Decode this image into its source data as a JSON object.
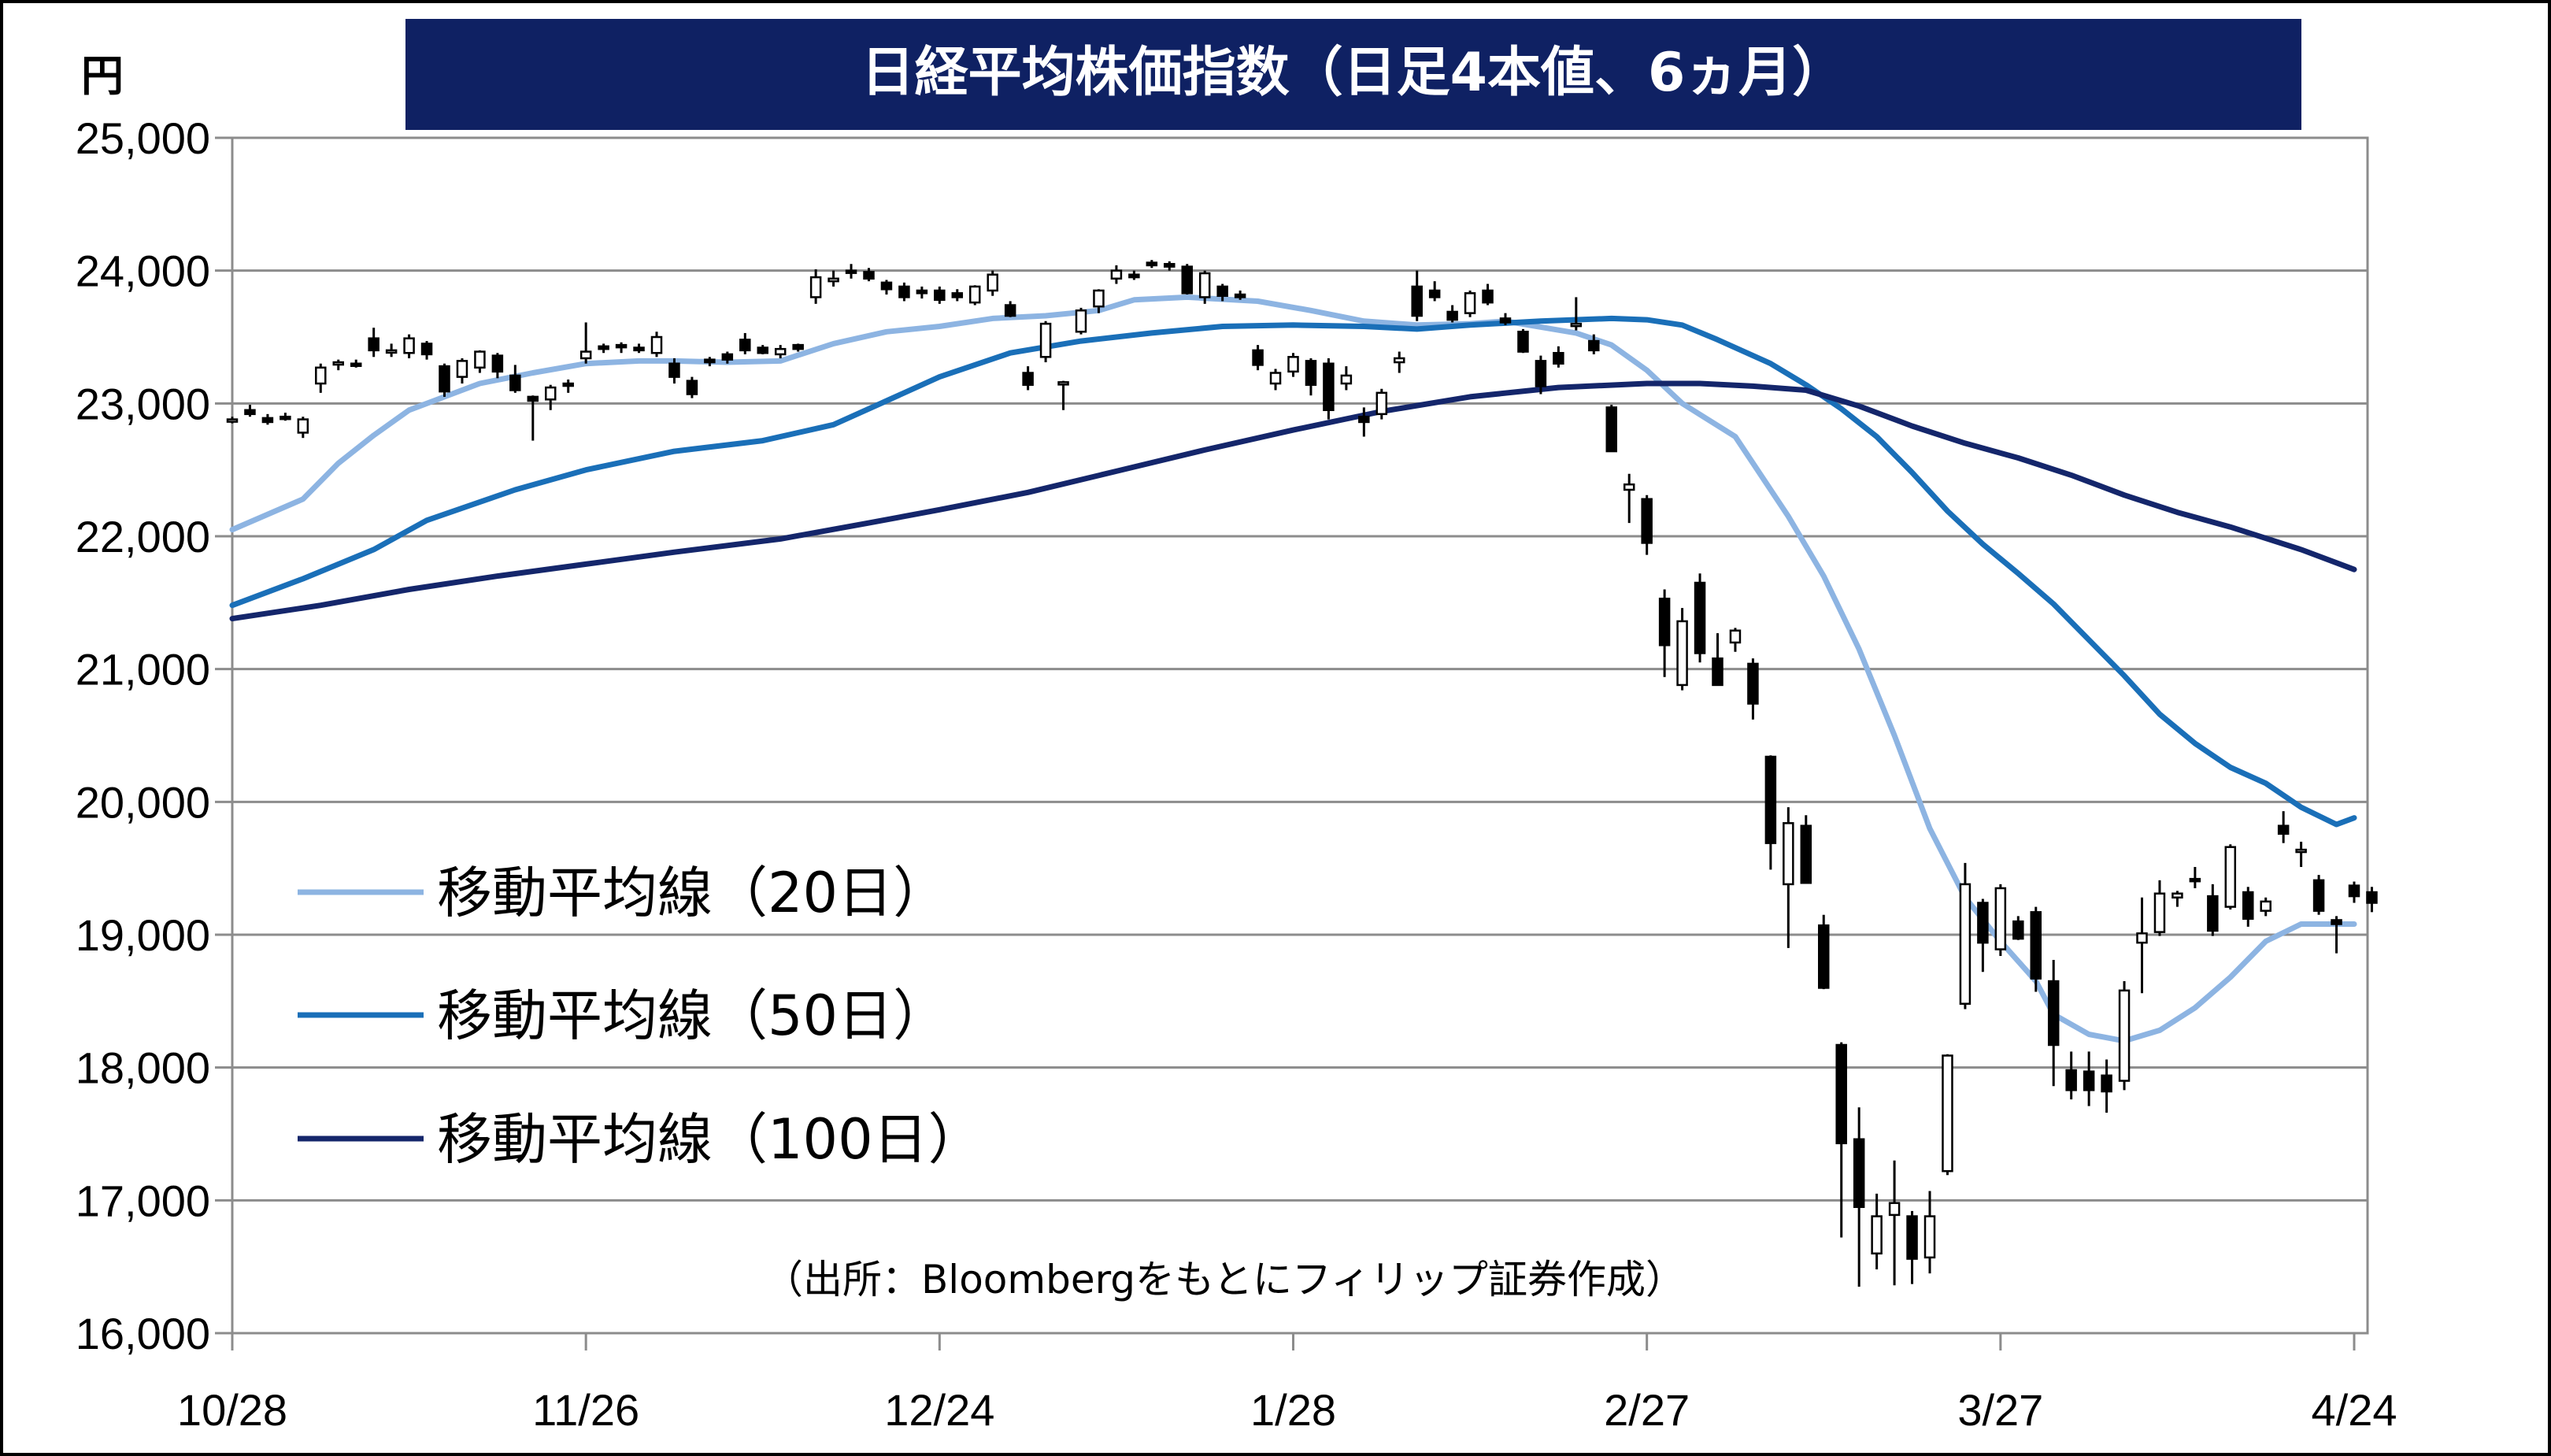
{
  "chart_data": {
    "type": "candlestick",
    "title": "日経平均株価指数（日足4本値、6ヵ月）",
    "unit": "円",
    "source": "（出所：Bloombergをもとにフィリップ証券作成）",
    "ylim": [
      16000,
      25000
    ],
    "y_ticks": [
      {
        "value": 16000,
        "label": "16,000"
      },
      {
        "value": 17000,
        "label": "17,000"
      },
      {
        "value": 18000,
        "label": "18,000"
      },
      {
        "value": 19000,
        "label": "19,000"
      },
      {
        "value": 20000,
        "label": "20,000"
      },
      {
        "value": 21000,
        "label": "21,000"
      },
      {
        "value": 22000,
        "label": "22,000"
      },
      {
        "value": 23000,
        "label": "23,000"
      },
      {
        "value": 24000,
        "label": "24,000"
      },
      {
        "value": 25000,
        "label": "25,000"
      }
    ],
    "x_ticks": [
      {
        "index": 0,
        "label": "10/28"
      },
      {
        "index": 20,
        "label": "11/26"
      },
      {
        "index": 40,
        "label": "12/24"
      },
      {
        "index": 60,
        "label": "1/28"
      },
      {
        "index": 80,
        "label": "2/27"
      },
      {
        "index": 100,
        "label": "3/27"
      },
      {
        "index": 120,
        "label": "4/24"
      }
    ],
    "grid": true,
    "legend_position": "left",
    "colors": {
      "ma20": "#8db4e2",
      "ma50": "#1a6fb8",
      "ma100": "#14266b",
      "title_bg": "#0f2163",
      "grid": "#8c8c8c",
      "candle_up_fill": "#ffffff",
      "candle_down_fill": "#000000"
    },
    "series": [
      {
        "name": "移動平均線（20日）",
        "key": "ma20",
        "points": [
          [
            0,
            22050
          ],
          [
            4,
            22280
          ],
          [
            6,
            22550
          ],
          [
            8,
            22760
          ],
          [
            10,
            22950
          ],
          [
            12,
            23050
          ],
          [
            14,
            23150
          ],
          [
            17,
            23230
          ],
          [
            20,
            23300
          ],
          [
            23,
            23320
          ],
          [
            25,
            23320
          ],
          [
            28,
            23310
          ],
          [
            31,
            23320
          ],
          [
            34,
            23450
          ],
          [
            37,
            23540
          ],
          [
            40,
            23580
          ],
          [
            43,
            23640
          ],
          [
            46,
            23660
          ],
          [
            49,
            23700
          ],
          [
            51,
            23780
          ],
          [
            54,
            23800
          ],
          [
            58,
            23770
          ],
          [
            61,
            23700
          ],
          [
            64,
            23620
          ],
          [
            67,
            23590
          ],
          [
            70,
            23600
          ],
          [
            72,
            23620
          ],
          [
            76,
            23530
          ],
          [
            78,
            23440
          ],
          [
            80,
            23250
          ],
          [
            82,
            23000
          ],
          [
            85,
            22750
          ],
          [
            88,
            22150
          ],
          [
            90,
            21700
          ],
          [
            92,
            21150
          ],
          [
            94,
            20500
          ],
          [
            96,
            19800
          ],
          [
            98,
            19280
          ],
          [
            100,
            18950
          ],
          [
            102,
            18650
          ],
          [
            103,
            18400
          ],
          [
            105,
            18250
          ],
          [
            107,
            18200
          ],
          [
            109,
            18280
          ],
          [
            111,
            18450
          ],
          [
            113,
            18680
          ],
          [
            115,
            18950
          ],
          [
            117,
            19080
          ],
          [
            119,
            19080
          ],
          [
            120,
            19080
          ]
        ]
      },
      {
        "name": "移動平均線（50日）",
        "key": "ma50",
        "points": [
          [
            0,
            21480
          ],
          [
            4,
            21680
          ],
          [
            8,
            21900
          ],
          [
            11,
            22120
          ],
          [
            16,
            22350
          ],
          [
            20,
            22500
          ],
          [
            25,
            22640
          ],
          [
            30,
            22720
          ],
          [
            34,
            22840
          ],
          [
            37,
            23020
          ],
          [
            40,
            23200
          ],
          [
            44,
            23380
          ],
          [
            48,
            23470
          ],
          [
            52,
            23530
          ],
          [
            56,
            23580
          ],
          [
            60,
            23590
          ],
          [
            64,
            23580
          ],
          [
            67,
            23560
          ],
          [
            70,
            23590
          ],
          [
            74,
            23620
          ],
          [
            78,
            23640
          ],
          [
            80,
            23630
          ],
          [
            82,
            23590
          ],
          [
            84,
            23480
          ],
          [
            87,
            23300
          ],
          [
            89,
            23140
          ],
          [
            91,
            22960
          ],
          [
            93,
            22750
          ],
          [
            95,
            22480
          ],
          [
            97,
            22190
          ],
          [
            99,
            21940
          ],
          [
            101,
            21720
          ],
          [
            103,
            21490
          ],
          [
            105,
            21220
          ],
          [
            107,
            20950
          ],
          [
            109,
            20660
          ],
          [
            111,
            20440
          ],
          [
            113,
            20260
          ],
          [
            115,
            20140
          ],
          [
            117,
            19960
          ],
          [
            119,
            19830
          ],
          [
            120,
            19880
          ]
        ]
      },
      {
        "name": "移動平均線（100日）",
        "key": "ma100",
        "points": [
          [
            0,
            21380
          ],
          [
            5,
            21480
          ],
          [
            10,
            21600
          ],
          [
            15,
            21700
          ],
          [
            20,
            21790
          ],
          [
            25,
            21880
          ],
          [
            31,
            21980
          ],
          [
            36,
            22100
          ],
          [
            40,
            22200
          ],
          [
            45,
            22330
          ],
          [
            50,
            22490
          ],
          [
            55,
            22650
          ],
          [
            60,
            22800
          ],
          [
            65,
            22940
          ],
          [
            70,
            23050
          ],
          [
            75,
            23120
          ],
          [
            80,
            23150
          ],
          [
            83,
            23150
          ],
          [
            86,
            23130
          ],
          [
            89,
            23100
          ],
          [
            92,
            22980
          ],
          [
            95,
            22830
          ],
          [
            98,
            22700
          ],
          [
            101,
            22590
          ],
          [
            104,
            22460
          ],
          [
            107,
            22310
          ],
          [
            110,
            22180
          ],
          [
            113,
            22070
          ],
          [
            117,
            21900
          ],
          [
            120,
            21750
          ]
        ]
      }
    ],
    "candles": [
      [
        0,
        22880,
        22900,
        22850,
        22880
      ],
      [
        1,
        22950,
        22990,
        22900,
        22920
      ],
      [
        2,
        22890,
        22920,
        22840,
        22860
      ],
      [
        3,
        22900,
        22930,
        22870,
        22890
      ],
      [
        4,
        22780,
        22900,
        22740,
        22880
      ],
      [
        5,
        23150,
        23300,
        23080,
        23270
      ],
      [
        6,
        23300,
        23330,
        23250,
        23310
      ],
      [
        7,
        23300,
        23330,
        23270,
        23290
      ],
      [
        8,
        23490,
        23570,
        23350,
        23400
      ],
      [
        9,
        23400,
        23450,
        23350,
        23400
      ],
      [
        10,
        23380,
        23520,
        23340,
        23490
      ],
      [
        11,
        23450,
        23470,
        23330,
        23370
      ],
      [
        12,
        23280,
        23300,
        23050,
        23090
      ],
      [
        13,
        23200,
        23340,
        23150,
        23320
      ],
      [
        14,
        23270,
        23400,
        23230,
        23390
      ],
      [
        15,
        23360,
        23380,
        23190,
        23240
      ],
      [
        16,
        23210,
        23290,
        23080,
        23100
      ],
      [
        17,
        23050,
        23060,
        22720,
        23020
      ],
      [
        18,
        23030,
        23140,
        22950,
        23120
      ],
      [
        19,
        23150,
        23180,
        23080,
        23140
      ],
      [
        20,
        23340,
        23610,
        23300,
        23390
      ],
      [
        21,
        23430,
        23450,
        23380,
        23410
      ],
      [
        22,
        23440,
        23460,
        23380,
        23430
      ],
      [
        23,
        23420,
        23450,
        23380,
        23400
      ],
      [
        24,
        23380,
        23540,
        23350,
        23500
      ],
      [
        25,
        23300,
        23340,
        23150,
        23200
      ],
      [
        26,
        23170,
        23200,
        23040,
        23070
      ],
      [
        27,
        23330,
        23350,
        23280,
        23310
      ],
      [
        28,
        23370,
        23390,
        23300,
        23330
      ],
      [
        29,
        23480,
        23530,
        23370,
        23400
      ],
      [
        30,
        23420,
        23440,
        23370,
        23380
      ],
      [
        31,
        23370,
        23440,
        23340,
        23410
      ],
      [
        32,
        23440,
        23450,
        23390,
        23410
      ],
      [
        33,
        23800,
        24010,
        23750,
        23950
      ],
      [
        34,
        23920,
        24000,
        23880,
        23940
      ],
      [
        35,
        24000,
        24050,
        23940,
        23990
      ],
      [
        36,
        23990,
        24020,
        23920,
        23940
      ],
      [
        37,
        23910,
        23930,
        23820,
        23860
      ],
      [
        38,
        23880,
        23910,
        23770,
        23800
      ],
      [
        39,
        23850,
        23880,
        23790,
        23830
      ],
      [
        40,
        23850,
        23880,
        23750,
        23780
      ],
      [
        41,
        23830,
        23860,
        23770,
        23800
      ],
      [
        42,
        23760,
        23890,
        23740,
        23880
      ],
      [
        43,
        23850,
        24000,
        23810,
        23970
      ],
      [
        44,
        23740,
        23770,
        23650,
        23660
      ],
      [
        45,
        23230,
        23280,
        23100,
        23140
      ],
      [
        46,
        23350,
        23620,
        23310,
        23600
      ],
      [
        47,
        23150,
        23170,
        22950,
        23160
      ],
      [
        48,
        23540,
        23720,
        23520,
        23700
      ],
      [
        49,
        23730,
        23860,
        23680,
        23850
      ],
      [
        50,
        23940,
        24040,
        23900,
        24000
      ],
      [
        51,
        23970,
        24000,
        23930,
        23950
      ],
      [
        52,
        24060,
        24080,
        24020,
        24040
      ],
      [
        53,
        24050,
        24070,
        24000,
        24030
      ],
      [
        54,
        24030,
        24050,
        23820,
        23830
      ],
      [
        55,
        23800,
        24000,
        23750,
        23980
      ],
      [
        56,
        23880,
        23900,
        23770,
        23810
      ],
      [
        57,
        23820,
        23850,
        23780,
        23800
      ],
      [
        58,
        23400,
        23440,
        23250,
        23290
      ],
      [
        59,
        23150,
        23260,
        23100,
        23230
      ],
      [
        60,
        23240,
        23380,
        23200,
        23350
      ],
      [
        61,
        23320,
        23340,
        23060,
        23140
      ],
      [
        62,
        23300,
        23340,
        22880,
        22950
      ],
      [
        63,
        23150,
        23280,
        23100,
        23210
      ],
      [
        64,
        22900,
        22970,
        22750,
        22860
      ],
      [
        65,
        22920,
        23110,
        22880,
        23080
      ],
      [
        66,
        23310,
        23390,
        23230,
        23340
      ],
      [
        67,
        23880,
        24000,
        23620,
        23660
      ],
      [
        68,
        23850,
        23920,
        23770,
        23800
      ],
      [
        69,
        23690,
        23740,
        23610,
        23630
      ],
      [
        70,
        23680,
        23850,
        23650,
        23830
      ],
      [
        71,
        23850,
        23900,
        23740,
        23760
      ],
      [
        72,
        23640,
        23680,
        23590,
        23610
      ],
      [
        73,
        23540,
        23560,
        23380,
        23390
      ],
      [
        74,
        23320,
        23360,
        23070,
        23130
      ],
      [
        75,
        23380,
        23430,
        23270,
        23300
      ],
      [
        76,
        23590,
        23800,
        23550,
        23600
      ],
      [
        77,
        23470,
        23520,
        23370,
        23400
      ],
      [
        78,
        22970,
        22990,
        22640,
        22640
      ],
      [
        79,
        22350,
        22470,
        22100,
        22390
      ],
      [
        80,
        22280,
        22310,
        21860,
        21950
      ],
      [
        81,
        21530,
        21600,
        20940,
        21180
      ],
      [
        82,
        20880,
        21460,
        20840,
        21360
      ],
      [
        83,
        21650,
        21720,
        21050,
        21120
      ],
      [
        84,
        21080,
        21270,
        20880,
        20880
      ],
      [
        85,
        21200,
        21310,
        21130,
        21290
      ],
      [
        86,
        21040,
        21080,
        20620,
        20740
      ],
      [
        87,
        20340,
        20350,
        19490,
        19690
      ],
      [
        88,
        19380,
        19960,
        18900,
        19840
      ],
      [
        89,
        19820,
        19900,
        19390,
        19390
      ],
      [
        90,
        19070,
        19150,
        18590,
        18600
      ],
      [
        91,
        18170,
        18190,
        16720,
        17430
      ],
      [
        92,
        17460,
        17700,
        16350,
        16950
      ],
      [
        93,
        16600,
        17050,
        16480,
        16880
      ],
      [
        94,
        16890,
        17300,
        16360,
        16980
      ],
      [
        95,
        16880,
        16920,
        16370,
        16560
      ],
      [
        96,
        16570,
        17070,
        16450,
        16880
      ],
      [
        97,
        17220,
        18100,
        17190,
        18090
      ],
      [
        98,
        18480,
        19540,
        18440,
        19380
      ],
      [
        99,
        19240,
        19270,
        18720,
        18940
      ],
      [
        100,
        18890,
        19380,
        18840,
        19350
      ],
      [
        101,
        19100,
        19140,
        18960,
        18970
      ],
      [
        102,
        19170,
        19210,
        18570,
        18670
      ],
      [
        103,
        18650,
        18810,
        17860,
        18170
      ],
      [
        104,
        17980,
        18120,
        17760,
        17830
      ],
      [
        105,
        17970,
        18120,
        17710,
        17830
      ],
      [
        106,
        17940,
        18060,
        17660,
        17820
      ],
      [
        107,
        17900,
        18650,
        17830,
        18580
      ],
      [
        108,
        18940,
        19280,
        18560,
        19010
      ],
      [
        109,
        19020,
        19410,
        18990,
        19310
      ],
      [
        110,
        19280,
        19330,
        19210,
        19310
      ],
      [
        111,
        19420,
        19510,
        19350,
        19410
      ],
      [
        112,
        19290,
        19380,
        18990,
        19030
      ],
      [
        113,
        19210,
        19680,
        19190,
        19660
      ],
      [
        114,
        19320,
        19360,
        19060,
        19120
      ],
      [
        115,
        19180,
        19280,
        19140,
        19250
      ],
      [
        116,
        19820,
        19930,
        19690,
        19760
      ],
      [
        117,
        19640,
        19700,
        19510,
        19640
      ],
      [
        118,
        19410,
        19450,
        19150,
        19180
      ],
      [
        119,
        19110,
        19140,
        18860,
        19080
      ],
      [
        120,
        19370,
        19400,
        19240,
        19290
      ],
      [
        121,
        19320,
        19360,
        19170,
        19240
      ]
    ]
  }
}
